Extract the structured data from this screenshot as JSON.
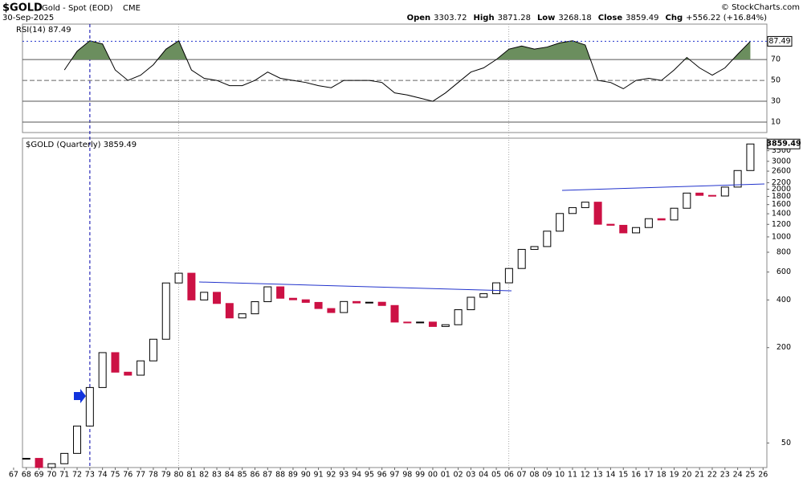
{
  "chart_data": [
    {
      "type": "candlestick",
      "title": "$GOLD",
      "subtitle": "Gold - Spot (EOD)",
      "exchange": "CME",
      "date": "30-Sep-2025",
      "credit": "© StockCharts.com",
      "quote": [
        {
          "label": "Open",
          "value": 3303.72
        },
        {
          "label": "High",
          "value": 3871.28
        },
        {
          "label": "Low",
          "value": 3268.18
        },
        {
          "label": "Close",
          "value": 3859.49
        },
        {
          "label": "Chg",
          "value": "+556.22 (+16.84%)"
        }
      ],
      "legend": "$GOLD (Quarterly) 3859.49",
      "log_scale": true,
      "x": [
        1968,
        1969,
        1970,
        1971,
        1972,
        1973,
        1974,
        1975,
        1976,
        1977,
        1978,
        1979,
        1980,
        1981,
        1982,
        1983,
        1984,
        1985,
        1986,
        1987,
        1988,
        1989,
        1990,
        1991,
        1992,
        1993,
        1994,
        1995,
        1996,
        1997,
        1998,
        1999,
        2000,
        2001,
        2002,
        2003,
        2004,
        2005,
        2006,
        2007,
        2008,
        2009,
        2010,
        2011,
        2012,
        2013,
        2014,
        2015,
        2016,
        2017,
        2018,
        2019,
        2020,
        2021,
        2022,
        2023,
        2024,
        2025
      ],
      "series": [
        {
          "name": "$GOLD",
          "up_color": "#ffffff",
          "down_color": "#cc1144",
          "values": [
            40,
            35,
            37,
            43,
            64,
            112,
            186,
            140,
            134,
            165,
            226,
            512,
            590,
            400,
            447,
            380,
            308,
            327,
            390,
            484,
            410,
            401,
            386,
            353,
            333,
            391,
            383,
            387,
            369,
            290,
            288,
            290,
            272,
            279,
            347,
            416,
            438,
            513,
            632,
            834,
            869,
            1087,
            1405,
            1531,
            1657,
            1202,
            1184,
            1060,
            1146,
            1303,
            1279,
            1517,
            1891,
            1829,
            1812,
            2063,
            2624,
            3859.49
          ]
        }
      ],
      "xlim": [
        1967.7,
        2026.3
      ],
      "xticks": [
        {
          "value": 1967,
          "label": "67"
        },
        {
          "value": 1968,
          "label": "68"
        },
        {
          "value": 1969,
          "label": "69"
        },
        {
          "value": 1970,
          "label": "70"
        },
        {
          "value": 1971,
          "label": "71"
        },
        {
          "value": 1972,
          "label": "72"
        },
        {
          "value": 1973,
          "label": "73"
        },
        {
          "value": 1974,
          "label": "74"
        },
        {
          "value": 1975,
          "label": "75"
        },
        {
          "value": 1976,
          "label": "76"
        },
        {
          "value": 1977,
          "label": "77"
        },
        {
          "value": 1978,
          "label": "78"
        },
        {
          "value": 1979,
          "label": "79"
        },
        {
          "value": 1980,
          "label": "80"
        },
        {
          "value": 1981,
          "label": "81"
        },
        {
          "value": 1982,
          "label": "82"
        },
        {
          "value": 1983,
          "label": "83"
        },
        {
          "value": 1984,
          "label": "84"
        },
        {
          "value": 1985,
          "label": "85"
        },
        {
          "value": 1986,
          "label": "86"
        },
        {
          "value": 1987,
          "label": "87"
        },
        {
          "value": 1988,
          "label": "88"
        },
        {
          "value": 1989,
          "label": "89"
        },
        {
          "value": 1990,
          "label": "90"
        },
        {
          "value": 1991,
          "label": "91"
        },
        {
          "value": 1992,
          "label": "92"
        },
        {
          "value": 1993,
          "label": "93"
        },
        {
          "value": 1994,
          "label": "94"
        },
        {
          "value": 1995,
          "label": "95"
        },
        {
          "value": 1996,
          "label": "96"
        },
        {
          "value": 1997,
          "label": "97"
        },
        {
          "value": 1998,
          "label": "98"
        },
        {
          "value": 1999,
          "label": "99"
        },
        {
          "value": 2000,
          "label": "00"
        },
        {
          "value": 2001,
          "label": "01"
        },
        {
          "value": 2002,
          "label": "02"
        },
        {
          "value": 2003,
          "label": "03"
        },
        {
          "value": 2004,
          "label": "04"
        },
        {
          "value": 2005,
          "label": "05"
        },
        {
          "value": 2006,
          "label": "06"
        },
        {
          "value": 2007,
          "label": "07"
        },
        {
          "value": 2008,
          "label": "08"
        },
        {
          "value": 2009,
          "label": "09"
        },
        {
          "value": 2010,
          "label": "10"
        },
        {
          "value": 2011,
          "label": "11"
        },
        {
          "value": 2012,
          "label": "12"
        },
        {
          "value": 2013,
          "label": "13"
        },
        {
          "value": 2014,
          "label": "14"
        },
        {
          "value": 2015,
          "label": "15"
        },
        {
          "value": 2016,
          "label": "16"
        },
        {
          "value": 2017,
          "label": "17"
        },
        {
          "value": 2018,
          "label": "18"
        },
        {
          "value": 2019,
          "label": "19"
        },
        {
          "value": 2020,
          "label": "20"
        },
        {
          "value": 2021,
          "label": "21"
        },
        {
          "value": 2022,
          "label": "22"
        },
        {
          "value": 2023,
          "label": "23"
        },
        {
          "value": 2024,
          "label": "24"
        },
        {
          "value": 2025,
          "label": "25"
        },
        {
          "value": 2026,
          "label": "26"
        }
      ],
      "ylim": [
        35,
        4200
      ],
      "yticks": [
        50,
        200,
        400,
        600,
        800,
        1000,
        1200,
        1400,
        1600,
        1800,
        2000,
        2200,
        2600,
        3000,
        3500
      ]
    },
    {
      "type": "line",
      "legend": "RSI(14) 87.49",
      "x": [
        1971,
        1972,
        1973,
        1974,
        1975,
        1976,
        1977,
        1978,
        1979,
        1980,
        1981,
        1982,
        1983,
        1984,
        1985,
        1986,
        1987,
        1988,
        1989,
        1990,
        1991,
        1992,
        1993,
        1994,
        1995,
        1996,
        1997,
        1998,
        1999,
        2000,
        2001,
        2002,
        2003,
        2004,
        2005,
        2006,
        2007,
        2008,
        2009,
        2010,
        2011,
        2012,
        2013,
        2014,
        2015,
        2016,
        2017,
        2018,
        2019,
        2020,
        2021,
        2022,
        2023,
        2024,
        2025
      ],
      "series": [
        {
          "name": "RSI(14)",
          "color": "#000000",
          "fill_color": "#6b8e5e",
          "values": [
            60,
            78,
            88,
            85,
            60,
            50,
            55,
            65,
            80,
            88,
            60,
            52,
            50,
            45,
            45,
            50,
            58,
            52,
            50,
            48,
            45,
            43,
            50,
            50,
            50,
            48,
            38,
            36,
            33,
            30,
            38,
            48,
            58,
            62,
            70,
            80,
            83,
            80,
            82,
            86,
            88,
            84,
            50,
            48,
            42,
            50,
            52,
            50,
            60,
            72,
            62,
            55,
            62,
            75,
            87.49
          ]
        }
      ],
      "xlim": [
        1967.7,
        2026.3
      ],
      "ylim": [
        0,
        104
      ],
      "yticks": [
        10,
        30,
        50,
        70
      ]
    }
  ]
}
